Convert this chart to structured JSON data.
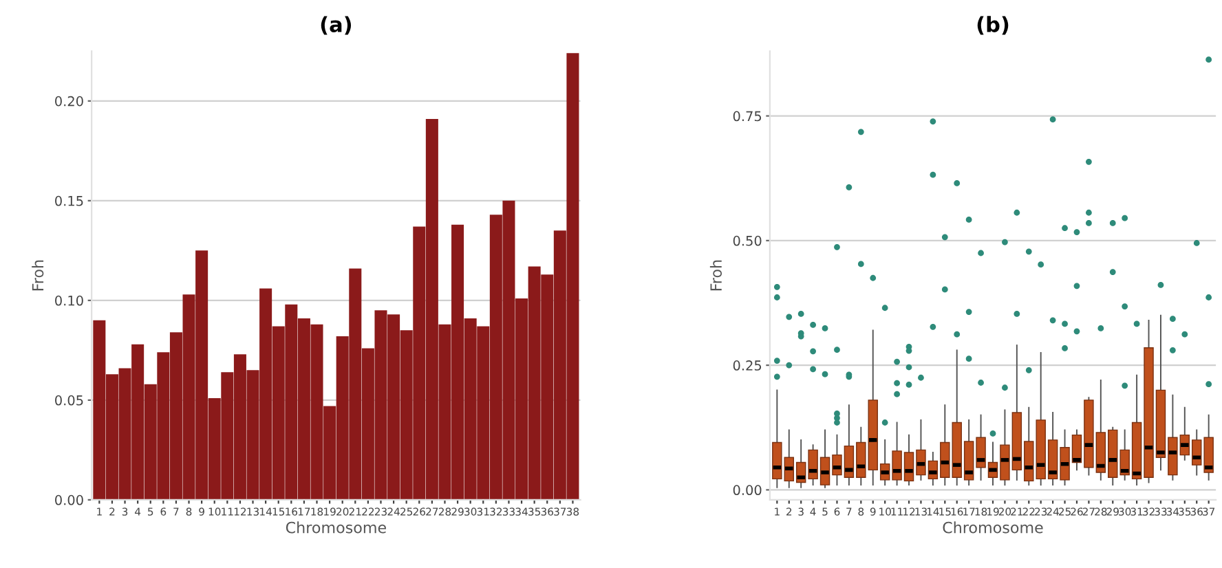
{
  "chart_data": [
    {
      "type": "bar",
      "title": "(a)",
      "xlabel": "Chromosome",
      "ylabel": "Froh",
      "categories": [
        "1",
        "2",
        "3",
        "4",
        "5",
        "6",
        "7",
        "8",
        "9",
        "10",
        "11",
        "12",
        "13",
        "14",
        "15",
        "16",
        "17",
        "18",
        "19",
        "20",
        "21",
        "22",
        "23",
        "24",
        "25",
        "26",
        "27",
        "28",
        "29",
        "30",
        "31",
        "32",
        "33",
        "34",
        "35",
        "36",
        "37",
        "38"
      ],
      "series": [
        {
          "color": "#8b1a1a",
          "values": [
            0.09,
            0.063,
            0.066,
            0.078,
            0.058,
            0.074,
            0.084,
            0.103,
            0.125,
            0.051,
            0.064,
            0.073,
            0.065,
            0.106,
            0.087,
            0.098,
            0.091,
            0.088,
            0.047,
            0.082,
            0.116,
            0.076,
            0.095,
            0.093,
            0.085,
            0.137,
            0.191,
            0.088,
            0.138,
            0.091,
            0.087,
            0.143,
            0.15,
            0.101,
            0.117,
            0.113,
            0.135,
            0.224
          ]
        }
      ],
      "ylim": [
        0,
        0.225
      ],
      "yticks": [
        {
          "value": 0,
          "label": "0.00"
        },
        {
          "value": 0.05,
          "label": "0.05"
        },
        {
          "value": 0.1,
          "label": "0.10"
        },
        {
          "value": 0.15,
          "label": "0.15"
        },
        {
          "value": 0.2,
          "label": "0.20"
        }
      ],
      "grid": "y"
    },
    {
      "type": "box",
      "title": "(b)",
      "xlabel": "Chromosome",
      "ylabel": "Froh",
      "categories": [
        "1",
        "2",
        "3",
        "4",
        "5",
        "6",
        "7",
        "8",
        "9",
        "10",
        "11",
        "12",
        "13",
        "14",
        "15",
        "16",
        "17",
        "18",
        "19",
        "20",
        "21",
        "22",
        "23",
        "24",
        "25",
        "26",
        "27",
        "28",
        "29",
        "30",
        "31",
        "32",
        "33",
        "34",
        "35",
        "36",
        "37"
      ],
      "series": [
        {
          "type": "box",
          "color": "#c0501c",
          "boxes": [
            {
              "low": 0.005,
              "q1": 0.022,
              "median": 0.045,
              "q3": 0.095,
              "high": 0.2
            },
            {
              "low": 0.005,
              "q1": 0.018,
              "median": 0.043,
              "q3": 0.065,
              "high": 0.12
            },
            {
              "low": 0.005,
              "q1": 0.015,
              "median": 0.025,
              "q3": 0.055,
              "high": 0.1
            },
            {
              "low": 0.01,
              "q1": 0.022,
              "median": 0.038,
              "q3": 0.08,
              "high": 0.09
            },
            {
              "low": 0.005,
              "q1": 0.01,
              "median": 0.035,
              "q3": 0.065,
              "high": 0.12
            },
            {
              "low": 0.01,
              "q1": 0.03,
              "median": 0.045,
              "q3": 0.07,
              "high": 0.11
            },
            {
              "low": 0.01,
              "q1": 0.025,
              "median": 0.04,
              "q3": 0.088,
              "high": 0.17
            },
            {
              "low": 0.01,
              "q1": 0.025,
              "median": 0.047,
              "q3": 0.095,
              "high": 0.125
            },
            {
              "low": 0.01,
              "q1": 0.04,
              "median": 0.1,
              "q3": 0.18,
              "high": 0.32
            },
            {
              "low": 0.01,
              "q1": 0.02,
              "median": 0.035,
              "q3": 0.052,
              "high": 0.1
            },
            {
              "low": 0.01,
              "q1": 0.02,
              "median": 0.038,
              "q3": 0.078,
              "high": 0.135
            },
            {
              "low": 0.01,
              "q1": 0.018,
              "median": 0.038,
              "q3": 0.075,
              "high": 0.11
            },
            {
              "low": 0.02,
              "q1": 0.03,
              "median": 0.052,
              "q3": 0.08,
              "high": 0.14
            },
            {
              "low": 0.01,
              "q1": 0.022,
              "median": 0.035,
              "q3": 0.058,
              "high": 0.075
            },
            {
              "low": 0.01,
              "q1": 0.025,
              "median": 0.055,
              "q3": 0.095,
              "high": 0.17
            },
            {
              "low": 0.01,
              "q1": 0.025,
              "median": 0.05,
              "q3": 0.135,
              "high": 0.28
            },
            {
              "low": 0.01,
              "q1": 0.02,
              "median": 0.035,
              "q3": 0.097,
              "high": 0.14
            },
            {
              "low": 0.02,
              "q1": 0.045,
              "median": 0.06,
              "q3": 0.105,
              "high": 0.15
            },
            {
              "low": 0.01,
              "q1": 0.025,
              "median": 0.04,
              "q3": 0.055,
              "high": 0.095
            },
            {
              "low": 0.01,
              "q1": 0.02,
              "median": 0.06,
              "q3": 0.09,
              "high": 0.16
            },
            {
              "low": 0.02,
              "q1": 0.04,
              "median": 0.062,
              "q3": 0.155,
              "high": 0.29
            },
            {
              "low": 0.01,
              "q1": 0.018,
              "median": 0.045,
              "q3": 0.097,
              "high": 0.165
            },
            {
              "low": 0.01,
              "q1": 0.022,
              "median": 0.05,
              "q3": 0.14,
              "high": 0.275
            },
            {
              "low": 0.01,
              "q1": 0.022,
              "median": 0.035,
              "q3": 0.1,
              "high": 0.155
            },
            {
              "low": 0.01,
              "q1": 0.02,
              "median": 0.052,
              "q3": 0.085,
              "high": 0.12
            },
            {
              "low": 0.04,
              "q1": 0.055,
              "median": 0.06,
              "q3": 0.11,
              "high": 0.12
            },
            {
              "low": 0.03,
              "q1": 0.045,
              "median": 0.09,
              "q3": 0.18,
              "high": 0.185
            },
            {
              "low": 0.02,
              "q1": 0.035,
              "median": 0.048,
              "q3": 0.115,
              "high": 0.22
            },
            {
              "low": 0.01,
              "q1": 0.025,
              "median": 0.06,
              "q3": 0.12,
              "high": 0.125
            },
            {
              "low": 0.02,
              "q1": 0.03,
              "median": 0.038,
              "q3": 0.08,
              "high": 0.12
            },
            {
              "low": 0.01,
              "q1": 0.022,
              "median": 0.033,
              "q3": 0.135,
              "high": 0.23
            },
            {
              "low": 0.015,
              "q1": 0.025,
              "median": 0.085,
              "q3": 0.285,
              "high": 0.34
            },
            {
              "low": 0.04,
              "q1": 0.065,
              "median": 0.075,
              "q3": 0.2,
              "high": 0.35
            },
            {
              "low": 0.02,
              "q1": 0.03,
              "median": 0.075,
              "q3": 0.105,
              "high": 0.19
            },
            {
              "low": 0.06,
              "q1": 0.07,
              "median": 0.09,
              "q3": 0.11,
              "high": 0.165
            },
            {
              "low": 0.03,
              "q1": 0.05,
              "median": 0.065,
              "q3": 0.1,
              "high": 0.12
            },
            {
              "low": 0.02,
              "q1": 0.035,
              "median": 0.045,
              "q3": 0.105,
              "high": 0.15
            }
          ]
        },
        {
          "type": "scatter",
          "color": "#2e8b7a",
          "x": [
            "1",
            "1",
            "1",
            "1",
            "2",
            "2",
            "3",
            "3",
            "3",
            "4",
            "4",
            "4",
            "5",
            "5",
            "6",
            "6",
            "6",
            "6",
            "6",
            "7",
            "7",
            "7",
            "8",
            "8",
            "9",
            "10",
            "10",
            "11",
            "11",
            "11",
            "12",
            "12",
            "12",
            "12",
            "13",
            "14",
            "14",
            "14",
            "15",
            "15",
            "16",
            "16",
            "17",
            "17",
            "17",
            "18",
            "18",
            "19",
            "20",
            "20",
            "21",
            "21",
            "22",
            "22",
            "23",
            "24",
            "24",
            "25",
            "25",
            "25",
            "26",
            "26",
            "26",
            "27",
            "27",
            "27",
            "28",
            "29",
            "29",
            "30",
            "30",
            "30",
            "31",
            "33",
            "34",
            "34",
            "35",
            "36",
            "37",
            "37",
            "37"
          ],
          "values": [
            0.407,
            0.386,
            0.259,
            0.227,
            0.347,
            0.25,
            0.353,
            0.314,
            0.308,
            0.331,
            0.278,
            0.242,
            0.324,
            0.232,
            0.487,
            0.281,
            0.153,
            0.144,
            0.135,
            0.607,
            0.231,
            0.227,
            0.718,
            0.453,
            0.425,
            0.365,
            0.135,
            0.257,
            0.214,
            0.192,
            0.287,
            0.279,
            0.246,
            0.211,
            0.225,
            0.739,
            0.632,
            0.327,
            0.507,
            0.402,
            0.615,
            0.312,
            0.542,
            0.357,
            0.263,
            0.475,
            0.215,
            0.113,
            0.497,
            0.205,
            0.556,
            0.353,
            0.478,
            0.24,
            0.452,
            0.743,
            0.34,
            0.525,
            0.333,
            0.284,
            0.517,
            0.409,
            0.318,
            0.658,
            0.556,
            0.535,
            0.324,
            0.535,
            0.437,
            0.545,
            0.368,
            0.209,
            0.333,
            0.411,
            0.343,
            0.28,
            0.312,
            0.495,
            0.863,
            0.386,
            0.212
          ]
        }
      ],
      "ylim": [
        -0.02,
        0.88
      ],
      "yticks": [
        {
          "value": 0,
          "label": "0.00"
        },
        {
          "value": 0.25,
          "label": "0.25"
        },
        {
          "value": 0.5,
          "label": "0.50"
        },
        {
          "value": 0.75,
          "label": "0.75"
        }
      ],
      "grid": "y"
    }
  ]
}
